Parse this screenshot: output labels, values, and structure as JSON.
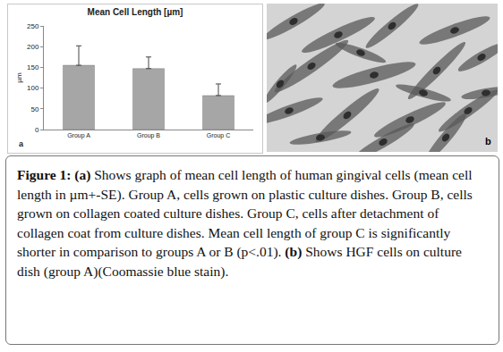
{
  "chart_data": {
    "type": "bar",
    "title": "Mean Cell Length [µm]",
    "y_label": "µm",
    "categories": [
      "Group A",
      "Group B",
      "Group C"
    ],
    "values": [
      155,
      147,
      82
    ],
    "errors": [
      47,
      28,
      28
    ],
    "color": "#a6a6a6",
    "ylim": [
      0,
      250
    ],
    "yticks": [
      0,
      50,
      100,
      150,
      200,
      250
    ],
    "grid": false,
    "annotation": "a"
  },
  "image": {
    "panel_label": "b"
  },
  "caption": {
    "label": "Figure 1:",
    "parts": [
      {
        "label": "(a)",
        "text": "Shows graph of mean cell length of human gingival cells (mean cell length in µm+-SE). Group A, cells grown on plastic culture dishes. Group B, cells grown on collagen coated culture dishes. Group C, cells after detachment of collagen coat from culture dishes. Mean cell length of group C is significantly shorter in comparison to groups A or B (p<.01)."
      },
      {
        "label": "(b)",
        "text": "Shows HGF cells on culture dish (group A)(Coomassie blue stain)."
      }
    ]
  }
}
